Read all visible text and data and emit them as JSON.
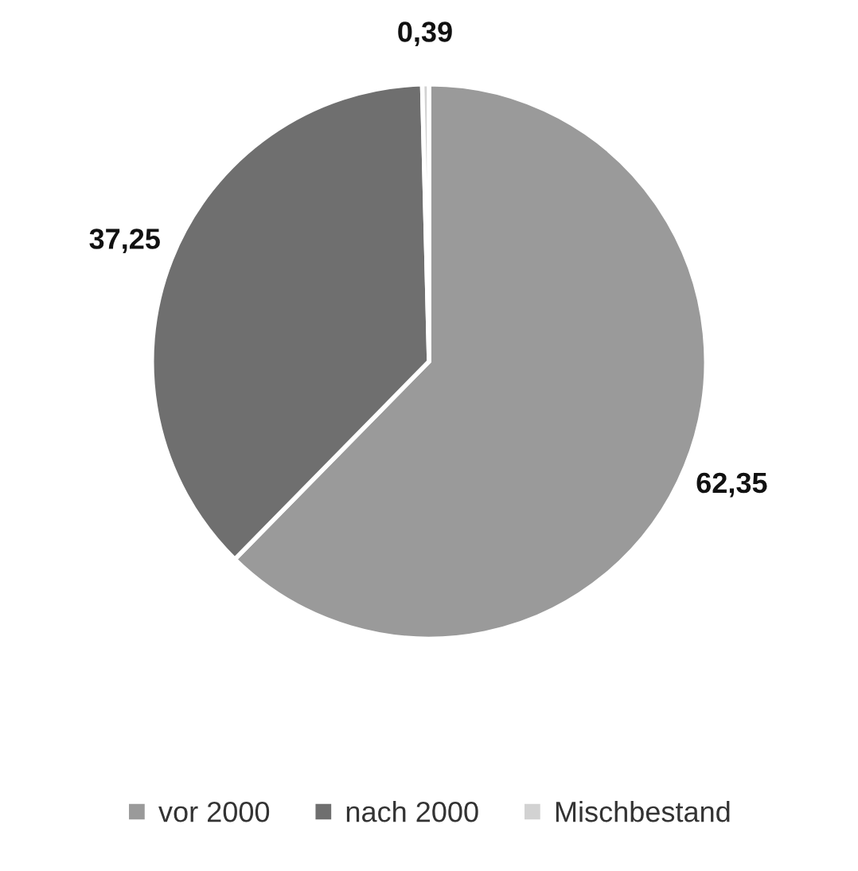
{
  "chart_data": {
    "type": "pie",
    "categories": [
      "vor 2000",
      "nach 2000",
      "Mischbestand"
    ],
    "values": [
      62.35,
      37.25,
      0.39
    ],
    "value_labels": [
      "62,35",
      "37,25",
      "0,39"
    ],
    "colors": [
      "#9a9a9a",
      "#6f6f6f",
      "#d2d2d2"
    ],
    "legend": "bottom"
  }
}
